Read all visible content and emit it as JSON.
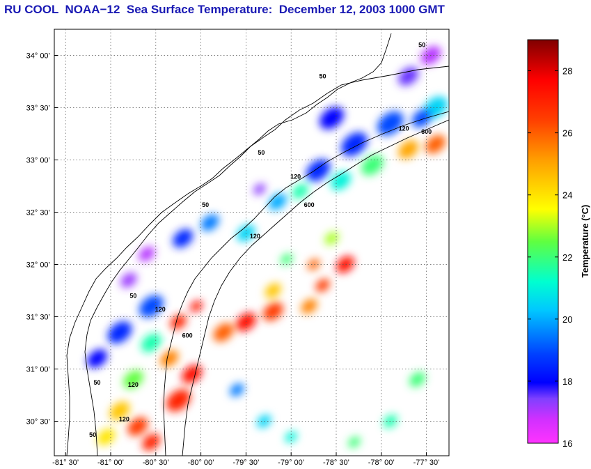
{
  "title": "RU COOL  NOAA−12  Sea Surface Temperature:  December 12, 2003 1000 GMT",
  "map": {
    "lon_range": [
      -81.625,
      -77.25
    ],
    "lat_range": [
      30.17,
      34.25
    ],
    "lon_ticks": [
      {
        "value": -81.5,
        "label": "-81° 30’"
      },
      {
        "value": -81.0,
        "label": "-81° 00’"
      },
      {
        "value": -80.5,
        "label": "-80° 30’"
      },
      {
        "value": -80.0,
        "label": "-80° 00’"
      },
      {
        "value": -79.5,
        "label": "-79° 30’"
      },
      {
        "value": -79.0,
        "label": "-79° 00’"
      },
      {
        "value": -78.5,
        "label": "-78° 30’"
      },
      {
        "value": -78.0,
        "label": "-78° 00’"
      },
      {
        "value": -77.5,
        "label": "-77° 30’"
      }
    ],
    "lat_ticks": [
      {
        "value": 34.0,
        "label": "34° 00’"
      },
      {
        "value": 33.5,
        "label": "33° 30’"
      },
      {
        "value": 33.0,
        "label": "33° 00’"
      },
      {
        "value": 32.5,
        "label": "32° 30’"
      },
      {
        "value": 32.0,
        "label": "32° 00’"
      },
      {
        "value": 31.5,
        "label": "31° 30’"
      },
      {
        "value": 31.0,
        "label": "31° 00’"
      },
      {
        "value": 30.5,
        "label": "30° 30’"
      }
    ],
    "contour_labels": [
      {
        "text": "50",
        "lon": -77.55,
        "lat": 34.08
      },
      {
        "text": "50",
        "lon": -78.65,
        "lat": 33.78
      },
      {
        "text": "50",
        "lon": -79.33,
        "lat": 33.05
      },
      {
        "text": "50",
        "lon": -79.95,
        "lat": 32.55
      },
      {
        "text": "50",
        "lon": -80.75,
        "lat": 31.68
      },
      {
        "text": "50",
        "lon": -81.15,
        "lat": 30.85
      },
      {
        "text": "50",
        "lon": -81.2,
        "lat": 30.35
      },
      {
        "text": "120",
        "lon": -77.75,
        "lat": 33.28
      },
      {
        "text": "120",
        "lon": -78.95,
        "lat": 32.82
      },
      {
        "text": "120",
        "lon": -79.4,
        "lat": 32.25
      },
      {
        "text": "120",
        "lon": -80.45,
        "lat": 31.55
      },
      {
        "text": "120",
        "lon": -80.75,
        "lat": 30.83
      },
      {
        "text": "120",
        "lon": -80.85,
        "lat": 30.5
      },
      {
        "text": "600",
        "lon": -77.5,
        "lat": 33.25
      },
      {
        "text": "600",
        "lon": -78.8,
        "lat": 32.55
      },
      {
        "text": "600",
        "lon": -80.15,
        "lat": 31.3
      }
    ],
    "sst_patches": [
      {
        "lon": -77.45,
        "lat": 34.0,
        "temp": 17.0,
        "r": 0.1
      },
      {
        "lon": -77.7,
        "lat": 33.8,
        "temp": 17.5,
        "r": 0.1
      },
      {
        "lon": -77.4,
        "lat": 33.5,
        "temp": 20.5,
        "r": 0.12
      },
      {
        "lon": -77.55,
        "lat": 33.4,
        "temp": 19.0,
        "r": 0.1
      },
      {
        "lon": -77.9,
        "lat": 33.35,
        "temp": 19.0,
        "r": 0.13
      },
      {
        "lon": -78.3,
        "lat": 33.15,
        "temp": 18.5,
        "r": 0.13
      },
      {
        "lon": -78.55,
        "lat": 33.4,
        "temp": 18.0,
        "r": 0.12
      },
      {
        "lon": -78.7,
        "lat": 32.9,
        "temp": 18.5,
        "r": 0.12
      },
      {
        "lon": -77.4,
        "lat": 33.15,
        "temp": 26.0,
        "r": 0.1
      },
      {
        "lon": -77.7,
        "lat": 33.1,
        "temp": 25.0,
        "r": 0.1
      },
      {
        "lon": -78.1,
        "lat": 32.95,
        "temp": 22.0,
        "r": 0.11
      },
      {
        "lon": -78.45,
        "lat": 32.8,
        "temp": 21.0,
        "r": 0.1
      },
      {
        "lon": -78.9,
        "lat": 32.7,
        "temp": 21.5,
        "r": 0.08
      },
      {
        "lon": -79.15,
        "lat": 32.6,
        "temp": 20.0,
        "r": 0.09
      },
      {
        "lon": -79.35,
        "lat": 32.72,
        "temp": 17.3,
        "r": 0.06
      },
      {
        "lon": -78.55,
        "lat": 32.25,
        "temp": 23.0,
        "r": 0.07
      },
      {
        "lon": -78.75,
        "lat": 32.0,
        "temp": 26.0,
        "r": 0.06
      },
      {
        "lon": -78.4,
        "lat": 32.0,
        "temp": 27.5,
        "r": 0.09
      },
      {
        "lon": -78.65,
        "lat": 31.8,
        "temp": 26.5,
        "r": 0.07
      },
      {
        "lon": -79.05,
        "lat": 32.05,
        "temp": 22.0,
        "r": 0.06
      },
      {
        "lon": -79.2,
        "lat": 31.75,
        "temp": 24.5,
        "r": 0.08
      },
      {
        "lon": -79.2,
        "lat": 31.55,
        "temp": 26.5,
        "r": 0.1
      },
      {
        "lon": -79.5,
        "lat": 31.45,
        "temp": 27.5,
        "r": 0.1
      },
      {
        "lon": -79.75,
        "lat": 31.35,
        "temp": 26.0,
        "r": 0.1
      },
      {
        "lon": -78.8,
        "lat": 31.6,
        "temp": 25.5,
        "r": 0.08
      },
      {
        "lon": -79.5,
        "lat": 32.3,
        "temp": 20.5,
        "r": 0.09
      },
      {
        "lon": -79.9,
        "lat": 32.4,
        "temp": 19.5,
        "r": 0.09
      },
      {
        "lon": -80.2,
        "lat": 32.25,
        "temp": 18.5,
        "r": 0.1
      },
      {
        "lon": -80.6,
        "lat": 32.1,
        "temp": 17.0,
        "r": 0.08
      },
      {
        "lon": -80.8,
        "lat": 31.85,
        "temp": 17.2,
        "r": 0.08
      },
      {
        "lon": -80.55,
        "lat": 31.6,
        "temp": 19.0,
        "r": 0.12
      },
      {
        "lon": -80.9,
        "lat": 31.35,
        "temp": 18.5,
        "r": 0.12
      },
      {
        "lon": -81.15,
        "lat": 31.1,
        "temp": 18.0,
        "r": 0.1
      },
      {
        "lon": -80.55,
        "lat": 31.25,
        "temp": 21.5,
        "r": 0.1
      },
      {
        "lon": -80.25,
        "lat": 31.45,
        "temp": 27.0,
        "r": 0.08
      },
      {
        "lon": -80.05,
        "lat": 31.6,
        "temp": 27.5,
        "r": 0.06
      },
      {
        "lon": -80.35,
        "lat": 31.1,
        "temp": 25.5,
        "r": 0.09
      },
      {
        "lon": -80.75,
        "lat": 30.9,
        "temp": 22.5,
        "r": 0.1
      },
      {
        "lon": -80.9,
        "lat": 30.6,
        "temp": 24.5,
        "r": 0.1
      },
      {
        "lon": -81.05,
        "lat": 30.35,
        "temp": 24.0,
        "r": 0.09
      },
      {
        "lon": -80.7,
        "lat": 30.45,
        "temp": 26.5,
        "r": 0.1
      },
      {
        "lon": -80.55,
        "lat": 30.3,
        "temp": 27.0,
        "r": 0.09
      },
      {
        "lon": -80.1,
        "lat": 30.95,
        "temp": 27.5,
        "r": 0.1
      },
      {
        "lon": -80.25,
        "lat": 30.7,
        "temp": 27.0,
        "r": 0.12
      },
      {
        "lon": -79.6,
        "lat": 30.8,
        "temp": 19.5,
        "r": 0.07
      },
      {
        "lon": -79.3,
        "lat": 30.5,
        "temp": 20.5,
        "r": 0.07
      },
      {
        "lon": -79.0,
        "lat": 30.35,
        "temp": 21.0,
        "r": 0.06
      },
      {
        "lon": -77.6,
        "lat": 30.9,
        "temp": 22.0,
        "r": 0.08
      },
      {
        "lon": -77.9,
        "lat": 30.5,
        "temp": 21.5,
        "r": 0.07
      },
      {
        "lon": -78.3,
        "lat": 30.3,
        "temp": 22.0,
        "r": 0.06
      }
    ]
  },
  "colorbar": {
    "label": "Temperature (°C)",
    "min": 16,
    "max": 29,
    "ticks": [
      {
        "value": 16,
        "label": "16"
      },
      {
        "value": 18,
        "label": "18"
      },
      {
        "value": 20,
        "label": "20"
      },
      {
        "value": 22,
        "label": "22"
      },
      {
        "value": 24,
        "label": "24"
      },
      {
        "value": 26,
        "label": "26"
      },
      {
        "value": 28,
        "label": "28"
      }
    ],
    "colors": {
      "magenta": "#ff33ff",
      "purple": "#8040ff",
      "blue": "#0000ff",
      "cyan": "#00ffff",
      "green": "#66ff33",
      "yellow": "#ffff00",
      "orange": "#ff8c00",
      "red": "#ff0000",
      "darkred": "#800000"
    }
  }
}
